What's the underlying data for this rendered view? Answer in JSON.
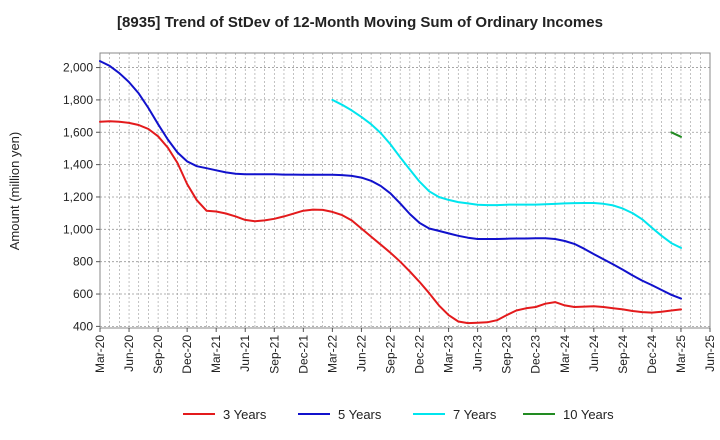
{
  "chart_data": {
    "type": "line",
    "title": "[8935]  Trend of StDev of 12-Month Moving Sum of Ordinary Incomes",
    "ylabel": "Amount (million yen)",
    "xlabel": "",
    "ylim": [
      390,
      2090
    ],
    "yticks": [
      400,
      600,
      800,
      1000,
      1200,
      1400,
      1600,
      1800,
      2000
    ],
    "ytick_labels": [
      "400",
      "600",
      "800",
      "1,000",
      "1,200",
      "1,400",
      "1,600",
      "1,800",
      "2,000"
    ],
    "x_start": "2020-03",
    "x_end": "2025-06",
    "xtick_labels": [
      "Mar-20",
      "Jun-20",
      "Sep-20",
      "Dec-20",
      "Mar-21",
      "Jun-21",
      "Sep-21",
      "Dec-21",
      "Mar-22",
      "Jun-22",
      "Sep-22",
      "Dec-22",
      "Mar-23",
      "Jun-23",
      "Sep-23",
      "Dec-23",
      "Mar-24",
      "Jun-24",
      "Sep-24",
      "Dec-24",
      "Mar-25",
      "Jun-25"
    ],
    "grid": true,
    "legend_position": "bottom",
    "series": [
      {
        "name": "3 Years",
        "color": "#e31a1c",
        "x": [
          "2020-03",
          "2020-04",
          "2020-05",
          "2020-06",
          "2020-07",
          "2020-08",
          "2020-09",
          "2020-10",
          "2020-11",
          "2020-12",
          "2021-01",
          "2021-02",
          "2021-03",
          "2021-04",
          "2021-05",
          "2021-06",
          "2021-07",
          "2021-08",
          "2021-09",
          "2021-10",
          "2021-11",
          "2021-12",
          "2022-01",
          "2022-02",
          "2022-03",
          "2022-04",
          "2022-05",
          "2022-06",
          "2022-07",
          "2022-08",
          "2022-09",
          "2022-10",
          "2022-11",
          "2022-12",
          "2023-01",
          "2023-02",
          "2023-03",
          "2023-04",
          "2023-05",
          "2023-06",
          "2023-07",
          "2023-08",
          "2023-09",
          "2023-10",
          "2023-11",
          "2023-12",
          "2024-01",
          "2024-02",
          "2024-03",
          "2024-04",
          "2024-05",
          "2024-06",
          "2024-07",
          "2024-08",
          "2024-09",
          "2024-10",
          "2024-11",
          "2024-12",
          "2025-01",
          "2025-02",
          "2025-03"
        ],
        "values": [
          1665,
          1668,
          1665,
          1658,
          1645,
          1620,
          1575,
          1505,
          1410,
          1280,
          1180,
          1115,
          1110,
          1098,
          1080,
          1058,
          1050,
          1055,
          1065,
          1080,
          1097,
          1115,
          1122,
          1120,
          1108,
          1088,
          1055,
          1005,
          955,
          905,
          855,
          800,
          740,
          675,
          605,
          530,
          470,
          430,
          420,
          422,
          425,
          438,
          470,
          498,
          512,
          520,
          540,
          550,
          530,
          520,
          522,
          525,
          520,
          512,
          505,
          495,
          488,
          485,
          490,
          498,
          505
        ]
      },
      {
        "name": "5 Years",
        "color": "#1111cc",
        "x": [
          "2020-03",
          "2020-04",
          "2020-05",
          "2020-06",
          "2020-07",
          "2020-08",
          "2020-09",
          "2020-10",
          "2020-11",
          "2020-12",
          "2021-01",
          "2021-02",
          "2021-03",
          "2021-04",
          "2021-05",
          "2021-06",
          "2021-07",
          "2021-08",
          "2021-09",
          "2021-10",
          "2021-11",
          "2021-12",
          "2022-01",
          "2022-02",
          "2022-03",
          "2022-04",
          "2022-05",
          "2022-06",
          "2022-07",
          "2022-08",
          "2022-09",
          "2022-10",
          "2022-11",
          "2022-12",
          "2023-01",
          "2023-02",
          "2023-03",
          "2023-04",
          "2023-05",
          "2023-06",
          "2023-07",
          "2023-08",
          "2023-09",
          "2023-10",
          "2023-11",
          "2023-12",
          "2024-01",
          "2024-02",
          "2024-03",
          "2024-04",
          "2024-05",
          "2024-06",
          "2024-07",
          "2024-08",
          "2024-09",
          "2024-10",
          "2024-11",
          "2024-12",
          "2025-01",
          "2025-02",
          "2025-03"
        ],
        "values": [
          2040,
          2010,
          1965,
          1910,
          1840,
          1750,
          1650,
          1555,
          1475,
          1420,
          1390,
          1378,
          1365,
          1352,
          1343,
          1340,
          1340,
          1340,
          1340,
          1338,
          1338,
          1337,
          1337,
          1337,
          1337,
          1335,
          1330,
          1320,
          1300,
          1268,
          1222,
          1160,
          1095,
          1040,
          1005,
          990,
          975,
          960,
          948,
          940,
          940,
          940,
          942,
          943,
          943,
          945,
          945,
          940,
          928,
          910,
          880,
          847,
          815,
          783,
          750,
          715,
          683,
          655,
          625,
          595,
          572
        ]
      },
      {
        "name": "7 Years",
        "color": "#00e5ee",
        "x": [
          "2022-03",
          "2022-04",
          "2022-05",
          "2022-06",
          "2022-07",
          "2022-08",
          "2022-09",
          "2022-10",
          "2022-11",
          "2022-12",
          "2023-01",
          "2023-02",
          "2023-03",
          "2023-04",
          "2023-05",
          "2023-06",
          "2023-07",
          "2023-08",
          "2023-09",
          "2023-10",
          "2023-11",
          "2023-12",
          "2024-01",
          "2024-02",
          "2024-03",
          "2024-04",
          "2024-05",
          "2024-06",
          "2024-07",
          "2024-08",
          "2024-09",
          "2024-10",
          "2024-11",
          "2024-12",
          "2025-01",
          "2025-02",
          "2025-03"
        ],
        "values": [
          1800,
          1770,
          1735,
          1695,
          1650,
          1595,
          1525,
          1445,
          1370,
          1295,
          1235,
          1200,
          1182,
          1168,
          1160,
          1152,
          1150,
          1150,
          1152,
          1153,
          1153,
          1153,
          1155,
          1157,
          1160,
          1162,
          1163,
          1163,
          1158,
          1148,
          1128,
          1100,
          1062,
          1010,
          960,
          915,
          885
        ]
      },
      {
        "name": "10 Years",
        "color": "#228b22",
        "x": [
          "2025-02",
          "2025-03"
        ],
        "values": [
          1600,
          1572
        ]
      }
    ]
  }
}
